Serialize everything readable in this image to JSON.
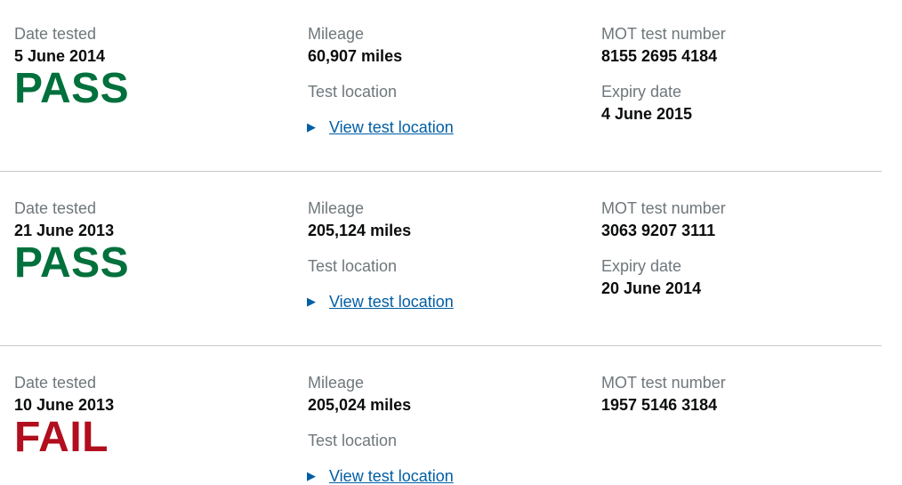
{
  "labels": {
    "date": "Date tested",
    "mileage": "Mileage",
    "test_number": "MOT test number",
    "location": "Test location",
    "expiry": "Expiry date",
    "view_location": "View test location"
  },
  "colors": {
    "pass": "#00703c",
    "fail": "#b10e1e",
    "link": "#005ea5",
    "label": "#6f777b"
  },
  "records": [
    {
      "date": "5 June 2014",
      "result": "PASS",
      "mileage": "60,907 miles",
      "test_number": "8155 2695 4184",
      "expiry": "4 June 2015"
    },
    {
      "date": "21 June 2013",
      "result": "PASS",
      "mileage": "205,124 miles",
      "test_number": "3063 9207 3111",
      "expiry": "20 June 2014"
    },
    {
      "date": "10 June 2013",
      "result": "FAIL",
      "mileage": "205,024 miles",
      "test_number": "1957 5146 3184"
    }
  ]
}
